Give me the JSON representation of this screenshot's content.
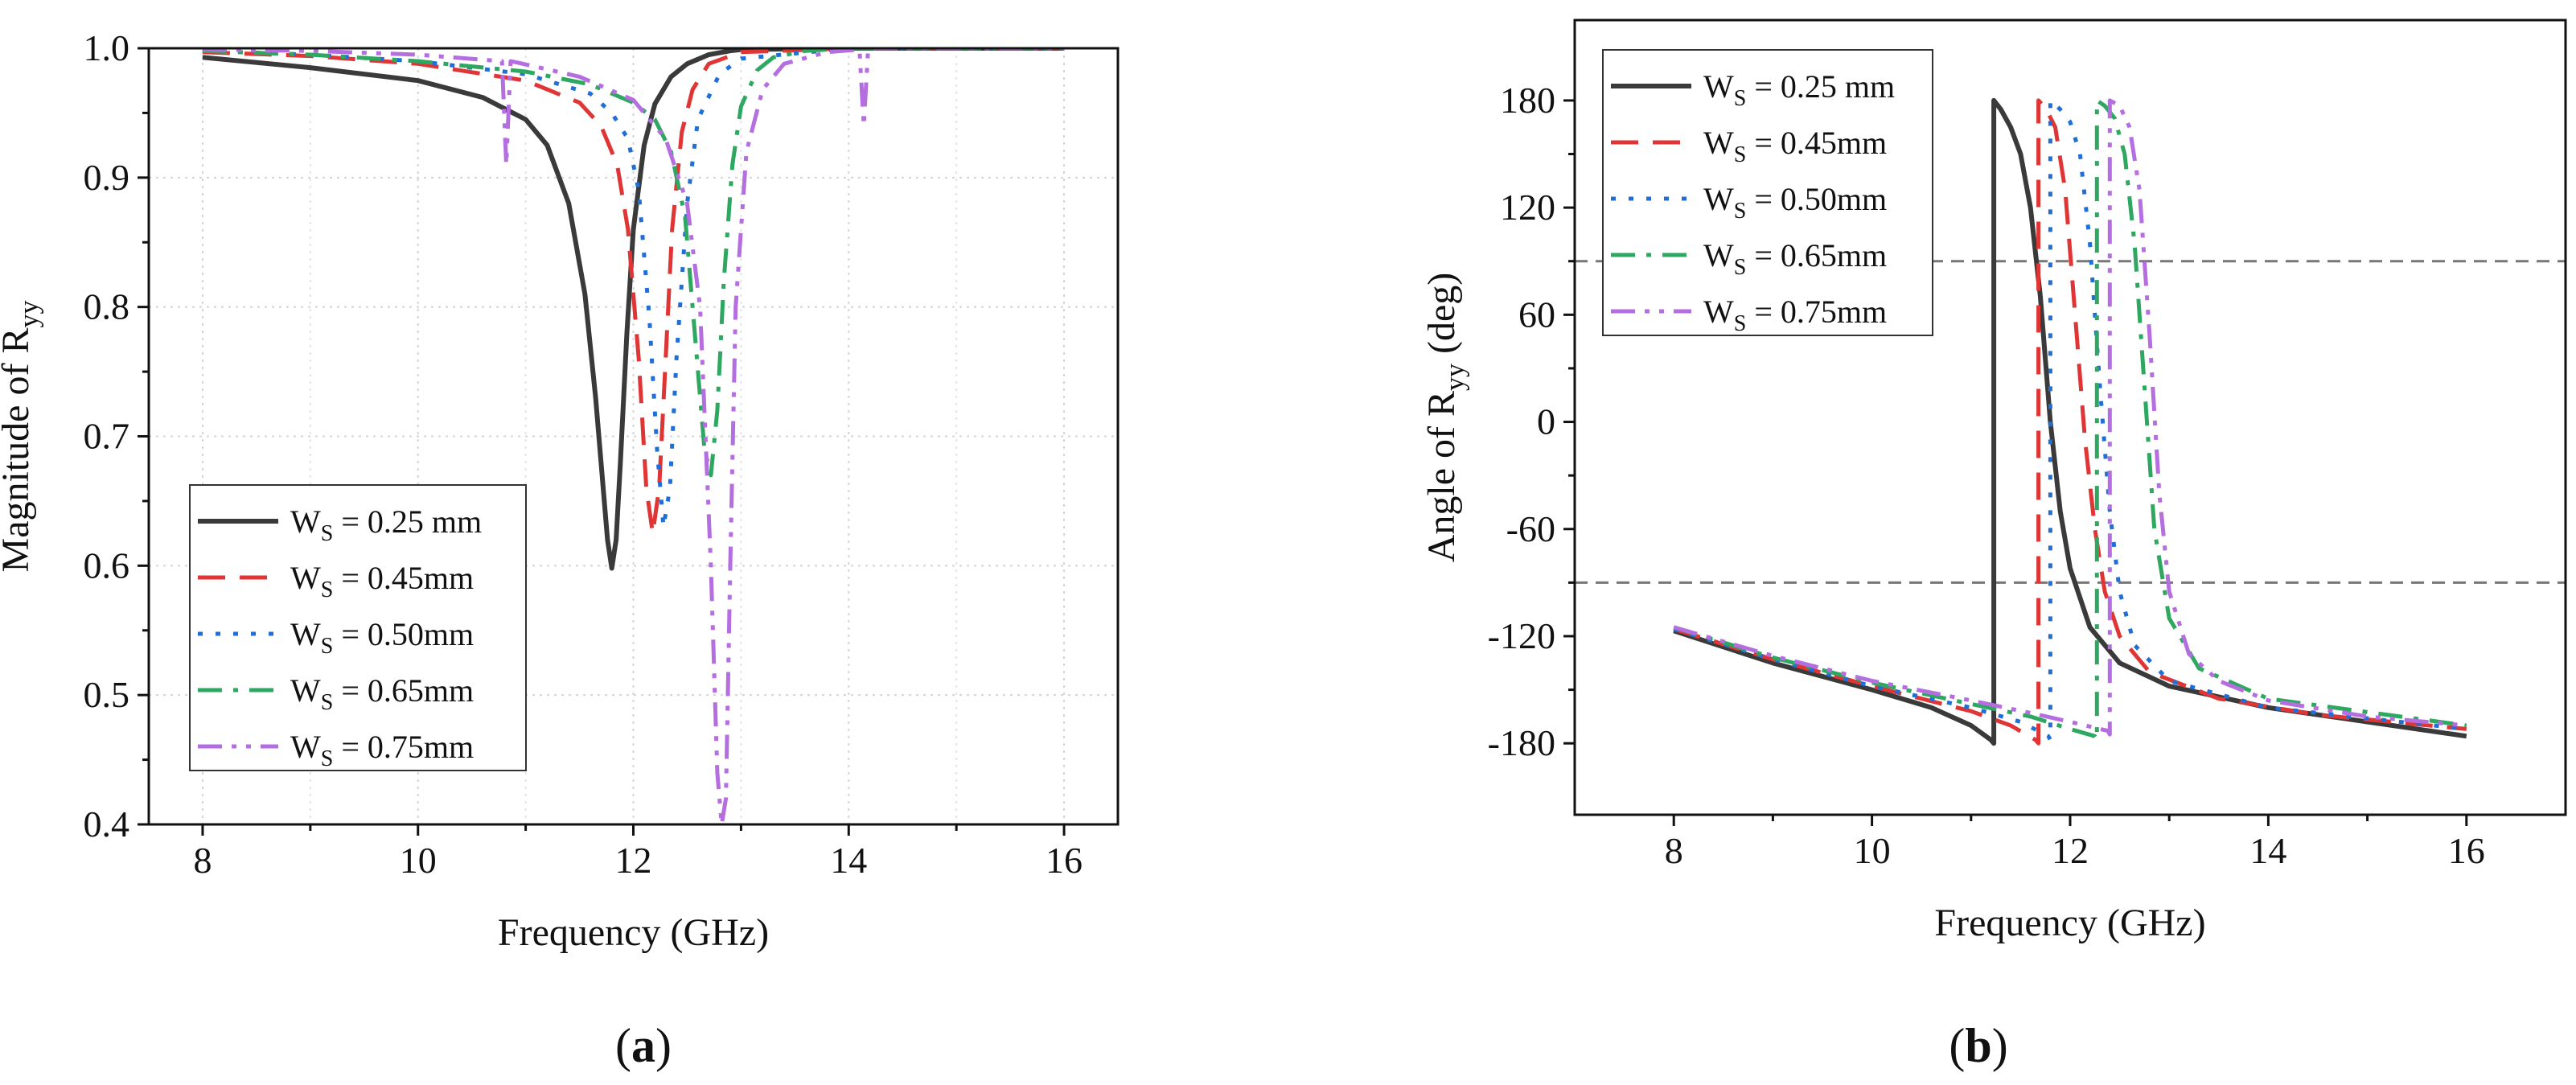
{
  "figure": {
    "panel_a_label": "a",
    "panel_b_label": "b"
  },
  "chart_data": [
    {
      "type": "line",
      "panel": "a",
      "xlabel": "Frequency (GHz)",
      "ylabel_main": "Magnitude of R",
      "ylabel_sub": "yy",
      "xlim": [
        7.5,
        16.5
      ],
      "ylim": [
        0.4,
        1.0
      ],
      "xticks": [
        8,
        10,
        12,
        14,
        16
      ],
      "yticks": [
        0.4,
        0.5,
        0.6,
        0.7,
        0.8,
        0.9,
        1.0
      ],
      "ytick_labels": [
        "0.4",
        "0.5",
        "0.6",
        "0.7",
        "0.8",
        "0.9",
        "1.0"
      ],
      "grid": true,
      "legend_position": "lower-left",
      "series": [
        {
          "name": "W_S = 0.25 mm",
          "prefix": "W",
          "sub": "S",
          "suffix": " = 0.25 mm",
          "color": "#3a3a3a",
          "dash": "solid",
          "x": [
            8.0,
            9.0,
            10.0,
            10.6,
            11.0,
            11.2,
            11.4,
            11.55,
            11.65,
            11.72,
            11.76,
            11.8,
            11.84,
            11.88,
            11.94,
            12.0,
            12.1,
            12.2,
            12.35,
            12.5,
            12.7,
            12.9,
            13.0,
            14.0,
            16.0
          ],
          "y": [
            0.993,
            0.985,
            0.975,
            0.962,
            0.945,
            0.925,
            0.88,
            0.81,
            0.73,
            0.66,
            0.62,
            0.598,
            0.62,
            0.68,
            0.78,
            0.86,
            0.925,
            0.957,
            0.978,
            0.988,
            0.995,
            0.998,
            0.999,
            1.0,
            1.0
          ]
        },
        {
          "name": "W_S = 0.45mm",
          "prefix": "W",
          "sub": "S",
          "suffix": " = 0.45mm",
          "color": "#e03535",
          "dash": "dashed",
          "x": [
            8.0,
            9.0,
            10.0,
            11.0,
            11.5,
            11.7,
            11.85,
            11.95,
            12.05,
            12.12,
            12.18,
            12.24,
            12.3,
            12.36,
            12.45,
            12.55,
            12.7,
            13.0,
            14.0,
            16.0
          ],
          "y": [
            0.997,
            0.994,
            0.988,
            0.975,
            0.958,
            0.94,
            0.91,
            0.86,
            0.76,
            0.66,
            0.625,
            0.66,
            0.76,
            0.86,
            0.935,
            0.968,
            0.988,
            0.997,
            1.0,
            1.0
          ]
        },
        {
          "name": "W_S = 0.50mm",
          "prefix": "W",
          "sub": "S",
          "suffix": " = 0.50mm",
          "color": "#1f6fd6",
          "dash": "dotted",
          "x": [
            8.0,
            9.0,
            10.0,
            11.0,
            11.6,
            11.8,
            11.95,
            12.05,
            12.15,
            12.22,
            12.28,
            12.34,
            12.4,
            12.5,
            12.6,
            12.8,
            13.0,
            14.0,
            16.0
          ],
          "y": [
            0.998,
            0.995,
            0.99,
            0.98,
            0.965,
            0.95,
            0.93,
            0.89,
            0.79,
            0.69,
            0.63,
            0.66,
            0.76,
            0.88,
            0.945,
            0.98,
            0.992,
            1.0,
            1.0
          ]
        },
        {
          "name": "W_S = 0.65mm",
          "prefix": "W",
          "sub": "S",
          "suffix": " = 0.65mm",
          "color": "#2ea860",
          "dash": "dashdot",
          "x": [
            8.0,
            9.0,
            10.0,
            11.0,
            11.6,
            12.0,
            12.2,
            12.35,
            12.48,
            12.58,
            12.66,
            12.72,
            12.78,
            12.84,
            12.92,
            13.0,
            13.15,
            13.3,
            13.6,
            14.0,
            16.0
          ],
          "y": [
            0.998,
            0.995,
            0.99,
            0.982,
            0.972,
            0.958,
            0.945,
            0.92,
            0.87,
            0.77,
            0.69,
            0.67,
            0.72,
            0.82,
            0.91,
            0.955,
            0.983,
            0.993,
            0.998,
            1.0,
            1.0
          ]
        },
        {
          "name": "W_S = 0.75mm",
          "prefix": "W",
          "sub": "S",
          "suffix": " = 0.75mm",
          "color": "#b46ee0",
          "dash": "dashdotdot",
          "x": [
            8.0,
            9.0,
            10.0,
            10.78,
            10.82,
            10.86,
            10.92,
            11.5,
            12.0,
            12.3,
            12.5,
            12.62,
            12.72,
            12.78,
            12.82,
            12.86,
            12.9,
            12.95,
            13.05,
            13.2,
            13.4,
            13.8,
            14.1,
            14.14,
            14.18,
            14.25,
            16.0
          ],
          "y": [
            0.999,
            0.998,
            0.995,
            0.99,
            0.91,
            0.99,
            0.989,
            0.978,
            0.96,
            0.93,
            0.88,
            0.8,
            0.6,
            0.44,
            0.4,
            0.42,
            0.6,
            0.8,
            0.92,
            0.968,
            0.988,
            0.997,
            0.999,
            0.94,
            0.999,
            1.0,
            1.0
          ]
        }
      ]
    },
    {
      "type": "line",
      "panel": "b",
      "xlabel": "Frequency (GHz)",
      "ylabel_main": "Angle of R",
      "ylabel_sub": "yy",
      "ylabel_unit": " (deg)",
      "xlim": [
        7.0,
        17.0
      ],
      "ylim": [
        -220,
        225
      ],
      "xticks": [
        8,
        10,
        12,
        14,
        16
      ],
      "yticks": [
        -180,
        -120,
        -60,
        0,
        60,
        120,
        180
      ],
      "reference_lines_y": [
        90,
        -90
      ],
      "grid": false,
      "legend_position": "top-left",
      "series": [
        {
          "name": "W_S = 0.25 mm",
          "prefix": "W",
          "sub": "S",
          "suffix": " = 0.25 mm",
          "color": "#3a3a3a",
          "dash": "solid",
          "x": [
            8.0,
            9.0,
            10.0,
            10.6,
            11.0,
            11.2,
            11.23,
            11.23,
            11.3,
            11.4,
            11.5,
            11.6,
            11.7,
            11.8,
            11.9,
            12.0,
            12.2,
            12.5,
            13.0,
            14.0,
            15.0,
            16.0
          ],
          "y": [
            -117,
            -135,
            -150,
            -160,
            -170,
            -178,
            -180,
            180,
            175,
            165,
            150,
            120,
            70,
            0,
            -50,
            -82,
            -115,
            -135,
            -148,
            -160,
            -168,
            -176
          ]
        },
        {
          "name": "W_S = 0.45mm",
          "prefix": "W",
          "sub": "S",
          "suffix": " = 0.45mm",
          "color": "#e03535",
          "dash": "dashed",
          "x": [
            8.0,
            9.0,
            10.0,
            11.0,
            11.4,
            11.65,
            11.68,
            11.68,
            11.75,
            11.85,
            11.95,
            12.05,
            12.15,
            12.25,
            12.35,
            12.5,
            12.8,
            13.5,
            14.5,
            16.0
          ],
          "y": [
            -116,
            -133,
            -148,
            -162,
            -170,
            -178,
            -180,
            180,
            176,
            165,
            130,
            60,
            -10,
            -60,
            -95,
            -120,
            -140,
            -155,
            -164,
            -172
          ]
        },
        {
          "name": "W_S = 0.50mm",
          "prefix": "W",
          "sub": "S",
          "suffix": " = 0.50mm",
          "color": "#1f6fd6",
          "dash": "dotted",
          "x": [
            8.0,
            9.0,
            10.0,
            11.0,
            11.5,
            11.78,
            11.8,
            11.8,
            11.9,
            12.0,
            12.1,
            12.2,
            12.3,
            12.4,
            12.5,
            12.65,
            13.0,
            14.0,
            16.0
          ],
          "y": [
            -116,
            -133,
            -148,
            -160,
            -168,
            -176,
            -178,
            180,
            175,
            168,
            150,
            100,
            20,
            -50,
            -95,
            -125,
            -145,
            -160,
            -172
          ]
        },
        {
          "name": "W_S = 0.65mm",
          "prefix": "W",
          "sub": "S",
          "suffix": " = 0.65mm",
          "color": "#2ea860",
          "dash": "dashdot",
          "x": [
            8.0,
            9.0,
            10.0,
            11.0,
            11.6,
            12.0,
            12.25,
            12.27,
            12.27,
            12.35,
            12.45,
            12.55,
            12.65,
            12.75,
            12.85,
            13.0,
            13.3,
            14.0,
            16.0
          ],
          "y": [
            -115,
            -132,
            -146,
            -158,
            -165,
            -172,
            -176,
            -178,
            180,
            177,
            170,
            150,
            100,
            20,
            -60,
            -110,
            -138,
            -155,
            -170
          ]
        },
        {
          "name": "W_S = 0.75mm",
          "prefix": "W",
          "sub": "S",
          "suffix": " = 0.75mm",
          "color": "#b46ee0",
          "dash": "dashdotdot",
          "x": [
            8.0,
            9.0,
            10.0,
            11.0,
            11.6,
            12.0,
            12.38,
            12.4,
            12.4,
            12.5,
            12.6,
            12.7,
            12.8,
            12.9,
            13.0,
            13.2,
            13.5,
            14.0,
            15.0,
            16.0
          ],
          "y": [
            -115,
            -131,
            -145,
            -156,
            -163,
            -168,
            -173,
            -175,
            180,
            177,
            165,
            130,
            50,
            -40,
            -95,
            -130,
            -145,
            -156,
            -165,
            -170
          ]
        }
      ]
    }
  ]
}
